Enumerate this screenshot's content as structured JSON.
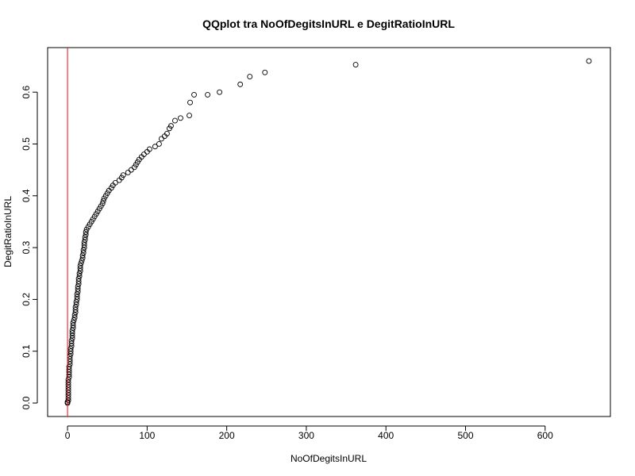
{
  "chart_data": {
    "type": "scatter",
    "title": "QQplot tra NoOfDegitsInURL e DegitRatioInURL",
    "xlabel": "NoOfDegitsInURL",
    "ylabel": "DegitRatioInURL",
    "xlim": [
      -25,
      682
    ],
    "ylim": [
      -0.026,
      0.686
    ],
    "xticks": [
      0,
      100,
      200,
      300,
      400,
      500,
      600
    ],
    "yticks": [
      0.0,
      0.1,
      0.2,
      0.3,
      0.4,
      0.5,
      0.6
    ],
    "xtick_labels": [
      "0",
      "100",
      "200",
      "300",
      "400",
      "500",
      "600"
    ],
    "ytick_labels": [
      "0.0",
      "0.1",
      "0.2",
      "0.3",
      "0.4",
      "0.5",
      "0.6"
    ],
    "grid": false,
    "reference_line": {
      "type": "vertical",
      "x": 0,
      "color": "#ff0000"
    },
    "points": [
      [
        0,
        0.0
      ],
      [
        0,
        0.002
      ],
      [
        1,
        0.005
      ],
      [
        1,
        0.01
      ],
      [
        1,
        0.015
      ],
      [
        1,
        0.02
      ],
      [
        1,
        0.025
      ],
      [
        1,
        0.03
      ],
      [
        1,
        0.035
      ],
      [
        1,
        0.04
      ],
      [
        1,
        0.045
      ],
      [
        2,
        0.05
      ],
      [
        2,
        0.055
      ],
      [
        2,
        0.06
      ],
      [
        2,
        0.065
      ],
      [
        2,
        0.07
      ],
      [
        3,
        0.075
      ],
      [
        3,
        0.08
      ],
      [
        3,
        0.085
      ],
      [
        3,
        0.09
      ],
      [
        4,
        0.095
      ],
      [
        4,
        0.1
      ],
      [
        4,
        0.105
      ],
      [
        5,
        0.11
      ],
      [
        5,
        0.115
      ],
      [
        5,
        0.12
      ],
      [
        6,
        0.125
      ],
      [
        6,
        0.13
      ],
      [
        6,
        0.135
      ],
      [
        6,
        0.14
      ],
      [
        7,
        0.145
      ],
      [
        7,
        0.15
      ],
      [
        7,
        0.155
      ],
      [
        8,
        0.16
      ],
      [
        9,
        0.165
      ],
      [
        9,
        0.17
      ],
      [
        10,
        0.175
      ],
      [
        10,
        0.18
      ],
      [
        10,
        0.185
      ],
      [
        11,
        0.19
      ],
      [
        11,
        0.195
      ],
      [
        12,
        0.2
      ],
      [
        12,
        0.205
      ],
      [
        12,
        0.21
      ],
      [
        13,
        0.215
      ],
      [
        13,
        0.22
      ],
      [
        13,
        0.225
      ],
      [
        14,
        0.23
      ],
      [
        14,
        0.235
      ],
      [
        14,
        0.24
      ],
      [
        15,
        0.245
      ],
      [
        15,
        0.25
      ],
      [
        16,
        0.255
      ],
      [
        16,
        0.26
      ],
      [
        16,
        0.265
      ],
      [
        17,
        0.27
      ],
      [
        18,
        0.275
      ],
      [
        19,
        0.28
      ],
      [
        19,
        0.285
      ],
      [
        20,
        0.29
      ],
      [
        20,
        0.295
      ],
      [
        21,
        0.3
      ],
      [
        21,
        0.305
      ],
      [
        21,
        0.31
      ],
      [
        22,
        0.315
      ],
      [
        22,
        0.32
      ],
      [
        23,
        0.325
      ],
      [
        23,
        0.33
      ],
      [
        24,
        0.335
      ],
      [
        26,
        0.34
      ],
      [
        28,
        0.345
      ],
      [
        30,
        0.35
      ],
      [
        32,
        0.355
      ],
      [
        34,
        0.36
      ],
      [
        36,
        0.365
      ],
      [
        38,
        0.37
      ],
      [
        40,
        0.375
      ],
      [
        42,
        0.38
      ],
      [
        44,
        0.385
      ],
      [
        45,
        0.39
      ],
      [
        46,
        0.395
      ],
      [
        48,
        0.4
      ],
      [
        50,
        0.405
      ],
      [
        52,
        0.41
      ],
      [
        55,
        0.415
      ],
      [
        57,
        0.42
      ],
      [
        60,
        0.425
      ],
      [
        65,
        0.43
      ],
      [
        68,
        0.435
      ],
      [
        70,
        0.44
      ],
      [
        76,
        0.445
      ],
      [
        80,
        0.45
      ],
      [
        84,
        0.455
      ],
      [
        86,
        0.46
      ],
      [
        88,
        0.465
      ],
      [
        90,
        0.47
      ],
      [
        93,
        0.475
      ],
      [
        96,
        0.48
      ],
      [
        100,
        0.485
      ],
      [
        103,
        0.49
      ],
      [
        110,
        0.495
      ],
      [
        115,
        0.5
      ],
      [
        118,
        0.51
      ],
      [
        122,
        0.515
      ],
      [
        125,
        0.52
      ],
      [
        128,
        0.53
      ],
      [
        130,
        0.535
      ],
      [
        135,
        0.545
      ],
      [
        142,
        0.55
      ],
      [
        153,
        0.555
      ],
      [
        154,
        0.58
      ],
      [
        159,
        0.595
      ],
      [
        176,
        0.595
      ],
      [
        191,
        0.6
      ],
      [
        217,
        0.615
      ],
      [
        229,
        0.63
      ],
      [
        248,
        0.638
      ],
      [
        362,
        0.653
      ],
      [
        655,
        0.66
      ]
    ]
  }
}
